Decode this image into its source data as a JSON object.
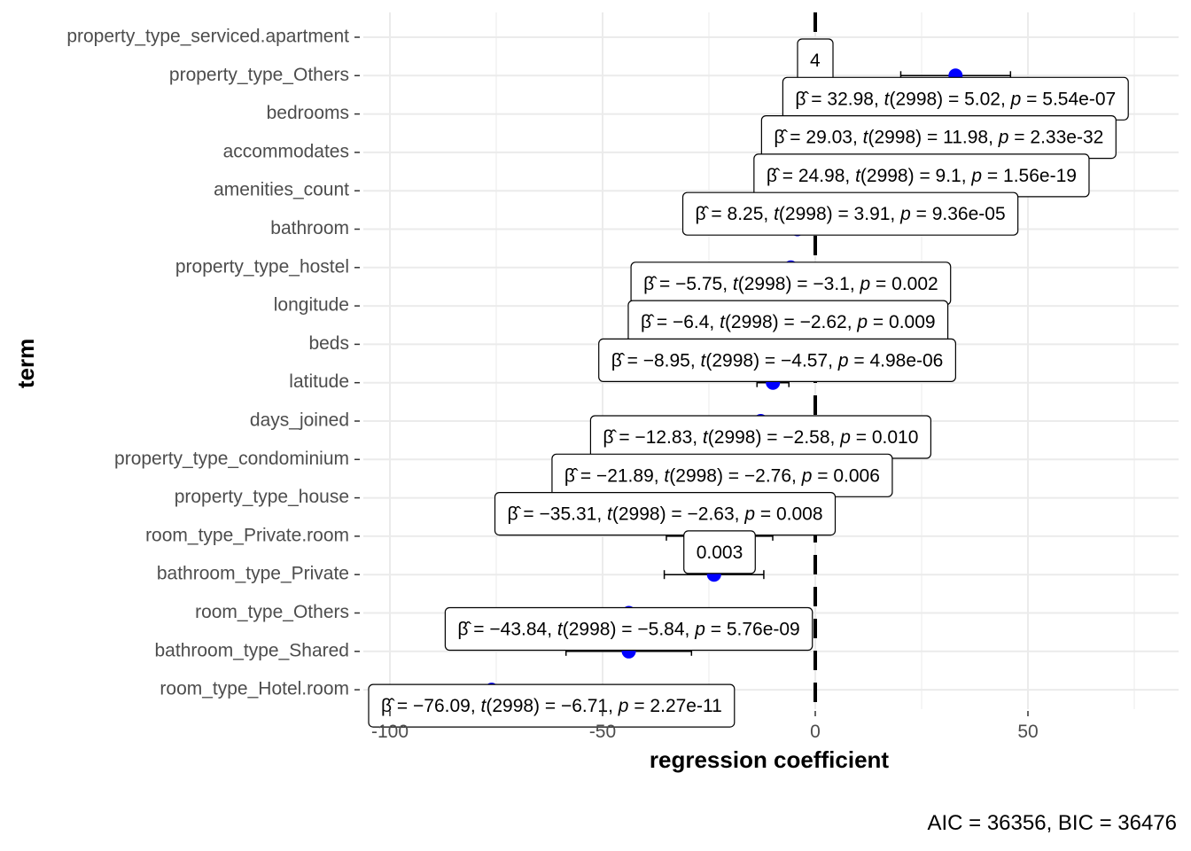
{
  "chart_data": {
    "type": "coefficient-plot",
    "xlabel": "regression coefficient",
    "ylabel": "term",
    "xlim": [
      -100,
      85
    ],
    "x_ticks": [
      -100,
      -50,
      0,
      50
    ],
    "x_tick_labels": [
      "-100",
      "-50",
      "0",
      "50"
    ],
    "reference_line_x": 0,
    "grid": true,
    "caption": "AIC = 36356, BIC = 36476",
    "terms": [
      {
        "term": "property_type_serviced.apartment",
        "estimate": 0,
        "lo": 0,
        "hi": 0,
        "label": "4"
      },
      {
        "term": "property_type_Others",
        "estimate": 32.98,
        "lo": 20.1,
        "hi": 45.9,
        "label": "β̂ = 32.98,  t(2998) = 5.02,  p = 5.54e-07"
      },
      {
        "term": "bedrooms",
        "estimate": 29.03,
        "lo": 24.3,
        "hi": 33.8,
        "label": "β̂ = 29.03,  t(2998) = 11.98,  p = 2.33e-32"
      },
      {
        "term": "accommodates",
        "estimate": 24.98,
        "lo": 19.6,
        "hi": 30.4,
        "label": "β̂ = 24.98,  t(2998) = 9.1,  p = 1.56e-19"
      },
      {
        "term": "amenities_count",
        "estimate": 8.25,
        "lo": 4.1,
        "hi": 12.4,
        "label": "β̂ = 8.25,  t(2998) = 3.91,  p = 9.36e-05"
      },
      {
        "term": "bathroom",
        "estimate": -4.2,
        "lo": -8.5,
        "hi": 0.1,
        "label": ""
      },
      {
        "term": "property_type_hostel",
        "estimate": -5.75,
        "lo": -9.4,
        "hi": -2.1,
        "label": "β̂ = −5.75,  t(2998) = −3.1,  p = 0.002"
      },
      {
        "term": "longitude",
        "estimate": -6.4,
        "lo": -11.2,
        "hi": -1.6,
        "label": "β̂ = −6.4,  t(2998) = −2.62,  p = 0.009"
      },
      {
        "term": "beds",
        "estimate": -8.95,
        "lo": -12.8,
        "hi": -5.1,
        "label": "β̂ = −8.95,  t(2998) = −4.57,  p = 4.98e-06"
      },
      {
        "term": "latitude",
        "estimate": -9.95,
        "lo": -13.7,
        "hi": -6.2,
        "label": ""
      },
      {
        "term": "days_joined",
        "estimate": -12.83,
        "lo": -22.6,
        "hi": -3.1,
        "label": "β̂ = −12.83,  t(2998) = −2.58,  p = 0.010"
      },
      {
        "term": "property_type_condominium",
        "estimate": -21.89,
        "lo": -37.4,
        "hi": -6.4,
        "label": "β̂ = −21.89,  t(2998) = −2.76,  p = 0.006"
      },
      {
        "term": "property_type_house",
        "estimate": -35.31,
        "lo": -61.6,
        "hi": -9.0,
        "label": "β̂ = −35.31,  t(2998) = −2.63,  p = 0.008"
      },
      {
        "term": "room_type_Private.room",
        "estimate": -22.5,
        "lo": -35.0,
        "hi": -10.0,
        "label": "0.003"
      },
      {
        "term": "bathroom_type_Private",
        "estimate": -23.8,
        "lo": -35.5,
        "hi": -12.1,
        "label": ""
      },
      {
        "term": "room_type_Others",
        "estimate": -43.84,
        "lo": -58.6,
        "hi": -29.1,
        "label": "β̂ = −43.84,  t(2998) = −5.84,  p = 5.76e-09"
      },
      {
        "term": "bathroom_type_Shared",
        "estimate": -43.84,
        "lo": -58.6,
        "hi": -29.1,
        "label": ""
      },
      {
        "term": "room_type_Hotel.room",
        "estimate": -76.09,
        "lo": -98.3,
        "hi": -53.9,
        "label": "β̂ = −76.09,  t(2998) = −6.71,  p = 2.27e-11"
      }
    ],
    "colors": {
      "point": "#0000ff",
      "refline": "#000000",
      "grid": "#ebebeb"
    }
  }
}
